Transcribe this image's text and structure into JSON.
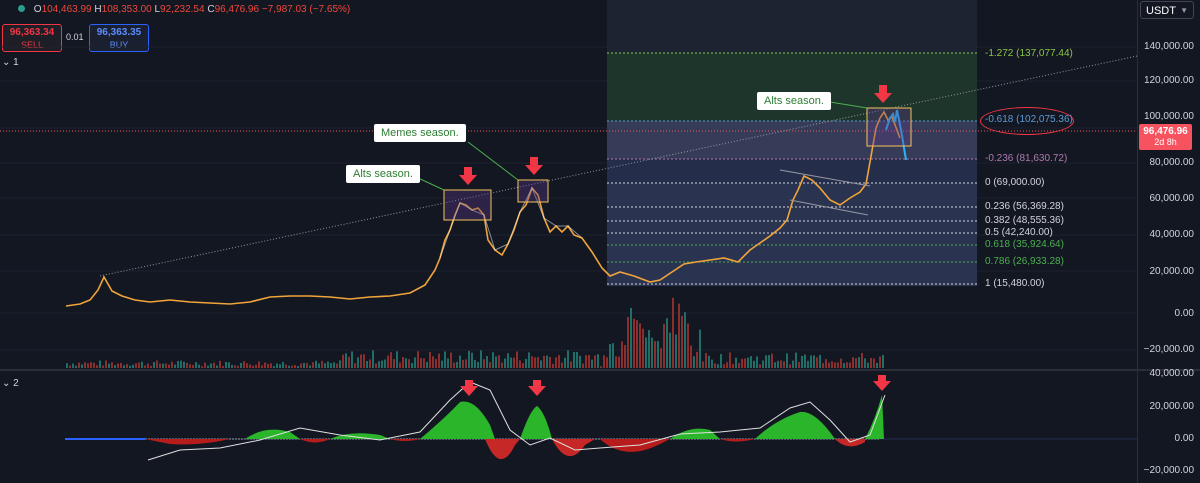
{
  "toolbar": {
    "ohlc": {
      "o_label": "O",
      "o": "104,463.99",
      "h_label": "H",
      "h": "108,353.00",
      "l_label": "L",
      "l": "92,232.54",
      "c_label": "C",
      "c": "96,476.96",
      "change": "−7,987.03 (−7.65%)"
    },
    "sell": {
      "price": "96,363.34",
      "label": "SELL"
    },
    "buy": {
      "price": "96,363.35",
      "label": "BUY"
    },
    "quantity": "0.01",
    "currency": "USDT"
  },
  "panes": {
    "main_label": "1",
    "osc_label": "2"
  },
  "price_axis": {
    "main_ticks": [
      "140,000.00",
      "120,000.00",
      "100,000.00",
      "80,000.00",
      "60,000.00",
      "40,000.00",
      "20,000.00",
      "0.00",
      "−20,000.00"
    ],
    "osc_ticks": [
      "40,000.00",
      "20,000.00",
      "0.00",
      "−20,000.00"
    ],
    "last_price": "96,476.96",
    "countdown": "2d 8h"
  },
  "fib_levels": [
    {
      "label": "-1.272 (137,077.44)",
      "color": "#8bc34a"
    },
    {
      "label": "-0.618 (102,075.36)",
      "color": "#5b9bd5"
    },
    {
      "label": "-0.236 (81,630.72)",
      "color": "#b07ab0"
    },
    {
      "label": "0 (69,000.00)",
      "color": "#d1d4dc"
    },
    {
      "label": "0.236 (56,369.28)",
      "color": "#d1d4dc"
    },
    {
      "label": "0.382 (48,555.36)",
      "color": "#d1d4dc"
    },
    {
      "label": "0.5 (42,240.00)",
      "color": "#d1d4dc"
    },
    {
      "label": "0.618 (35,924.64)",
      "color": "#4caf50"
    },
    {
      "label": "0.786 (26,933.28)",
      "color": "#4caf50"
    },
    {
      "label": "1 (15,480.00)",
      "color": "#d1d4dc"
    }
  ],
  "annotations": {
    "alts_1": "Alts season.",
    "memes": "Memes season.",
    "alts_2": "Alts season."
  },
  "colors": {
    "up": "#26a69a",
    "down": "#ef5350",
    "arrow": "#f23645",
    "fib_zone": "#2a3350",
    "accent": "#f7525f"
  }
}
